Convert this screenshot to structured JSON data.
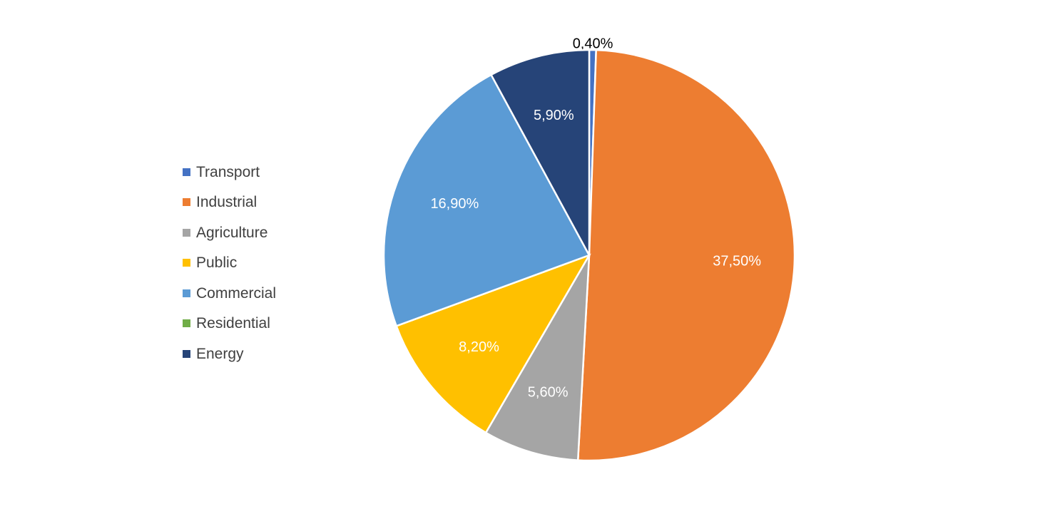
{
  "chart_data": {
    "type": "pie",
    "categories": [
      "Transport",
      "Industrial",
      "Agriculture",
      "Public",
      "Commercial",
      "Residential",
      "Energy"
    ],
    "values": [
      0.4,
      37.5,
      5.6,
      8.2,
      16.9,
      0,
      5.9
    ],
    "data_labels": [
      "0,40%",
      "37,50%",
      "5,60%",
      "8,20%",
      "16,90%",
      "",
      "5,90%"
    ],
    "colors": [
      "#4472C4",
      "#ED7D31",
      "#A5A5A5",
      "#FFC000",
      "#5B9BD5",
      "#70AD47",
      "#264478"
    ],
    "label_colors": [
      "#000000",
      "#FFFFFF",
      "#FFFFFF",
      "#FFFFFF",
      "#FFFFFF",
      "#FFFFFF",
      "#FFFFFF"
    ],
    "start_angle": "12 o'clock",
    "direction": "clockwise",
    "legend_position": "left",
    "title": ""
  }
}
